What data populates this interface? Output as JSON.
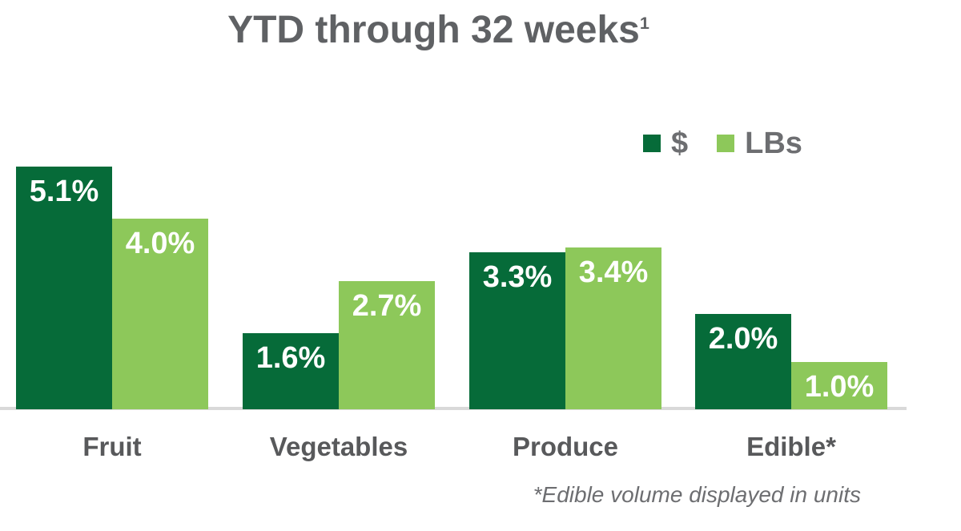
{
  "title": {
    "text": "YTD through 32 weeks",
    "superscript": "1"
  },
  "legend": {
    "items": [
      {
        "key": "dollars",
        "label": "$",
        "color": "#066B39"
      },
      {
        "key": "lbs",
        "label": "LBs",
        "color": "#8DC85A"
      }
    ]
  },
  "chart_data": {
    "type": "bar",
    "title": "YTD through 32 weeks",
    "categories": [
      "Fruit",
      "Vegetables",
      "Produce",
      "Edible*"
    ],
    "series": [
      {
        "key": "dollars",
        "name": "$",
        "color": "#066B39",
        "values": [
          5.1,
          1.6,
          3.3,
          2.0
        ],
        "labels": [
          "5.1%",
          "1.6%",
          "3.3%",
          "2.0%"
        ]
      },
      {
        "key": "lbs",
        "name": "LBs",
        "color": "#8DC85A",
        "values": [
          4.0,
          2.7,
          3.4,
          1.0
        ],
        "labels": [
          "4.0%",
          "2.7%",
          "3.4%",
          "1.0%"
        ]
      }
    ],
    "value_suffix": "%",
    "ylim": [
      0,
      5.5
    ],
    "grid": false,
    "legend_position": "top-right",
    "xlabel": "",
    "ylabel": ""
  },
  "footnote": "*Edible volume displayed in units",
  "colors": {
    "series_dollars": "#066B39",
    "series_lbs": "#8DC85A",
    "title_text": "#5F6164",
    "category_text": "#58595B",
    "legend_text": "#6D6E71",
    "value_text": "#FFFFFF",
    "axis_line": "#D9D9D9",
    "background": "#FFFFFF"
  }
}
